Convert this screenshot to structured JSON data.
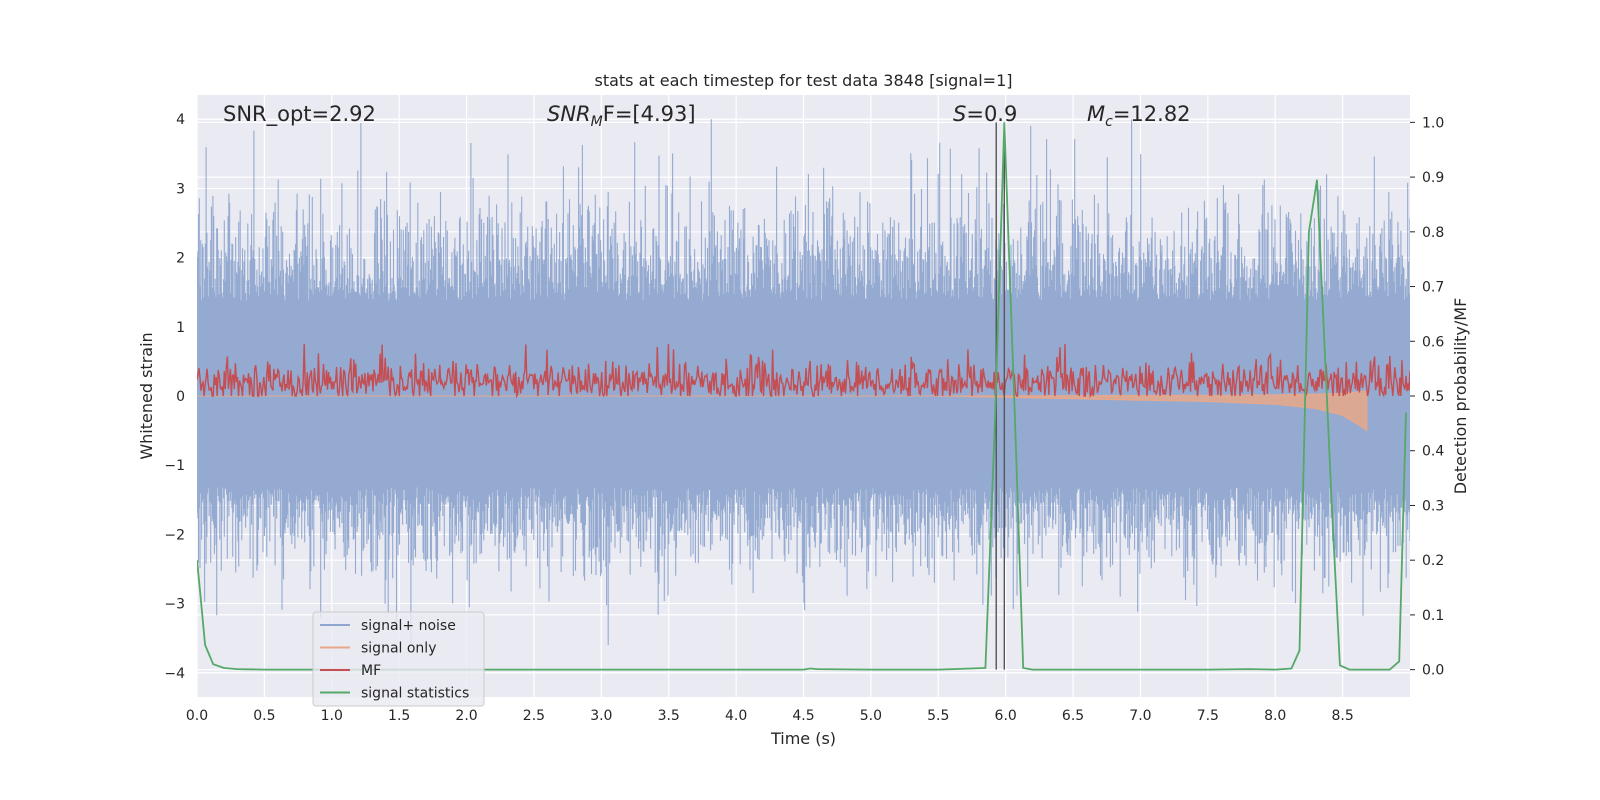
{
  "chart_data": {
    "type": "line",
    "title": "stats at each timestep for test data 3848 [signal=1]",
    "xlabel": "Time (s)",
    "ylabel_left": "Whitened strain",
    "ylabel_right": "Detection probability/MF",
    "xlim": [
      0.0,
      9.0
    ],
    "ylim_left": [
      -4.35,
      4.35
    ],
    "ylim_right": [
      -0.05,
      1.05
    ],
    "x_ticks": [
      "0.0",
      "0.5",
      "1.0",
      "1.5",
      "2.0",
      "2.5",
      "3.0",
      "3.5",
      "4.0",
      "4.5",
      "5.0",
      "5.5",
      "6.0",
      "6.5",
      "7.0",
      "7.5",
      "8.0",
      "8.5"
    ],
    "y_ticks_left": [
      "4",
      "3",
      "2",
      "1",
      "0",
      "−1",
      "−2",
      "−3",
      "−4"
    ],
    "y_ticks_right": [
      "1.0",
      "0.9",
      "0.8",
      "0.7",
      "0.6",
      "0.5",
      "0.4",
      "0.3",
      "0.2",
      "0.1",
      "0.0"
    ],
    "grid": true,
    "legend_position": "lower-left",
    "annotations": {
      "snr_opt": "SNR_opt=2.92",
      "snr_mf_main": "SNR",
      "snr_mf_sub": "M",
      "snr_mf_tail": "F=[4.93]",
      "s_var": "S",
      "s_val": "=0.9",
      "mc_main": "M",
      "mc_sub": "c",
      "mc_val": "=12.82"
    },
    "vertical_lines_x": [
      5.93,
      5.99
    ],
    "series": [
      {
        "name": "signal+ noise",
        "axis": "left",
        "color": "#8fa6cf",
        "description_values": "dense whitened strain noise, roughly within [-3.6, 4.0] around 0",
        "envelope": {
          "typical_max": 2.5,
          "typical_min": -2.2,
          "peak_max": 4.0,
          "peak_min": -3.6
        }
      },
      {
        "name": "signal only",
        "axis": "left",
        "color": "#e8a88a",
        "x": [
          0.0,
          5.5,
          6.0,
          6.5,
          7.0,
          7.5,
          8.0,
          8.3,
          8.5,
          8.62,
          8.68
        ],
        "y": [
          0.0,
          0.0,
          -0.02,
          -0.04,
          -0.06,
          -0.08,
          -0.12,
          -0.18,
          -0.28,
          -0.42,
          -0.5
        ]
      },
      {
        "name": "MF",
        "axis": "right",
        "color": "#c44e52",
        "description_values": "matched-filter output fluctuating mainly between 0.50 and 0.58",
        "range": [
          0.5,
          0.6
        ]
      },
      {
        "name": "signal statistics",
        "axis": "right",
        "color": "#55a868",
        "x": [
          0.0,
          0.02,
          0.06,
          0.12,
          0.2,
          0.3,
          0.5,
          1.0,
          2.0,
          3.0,
          4.0,
          4.5,
          4.55,
          4.6,
          5.0,
          5.5,
          5.85,
          5.92,
          5.99,
          6.07,
          6.13,
          6.2,
          6.5,
          7.0,
          7.5,
          7.8,
          8.0,
          8.12,
          8.18,
          8.25,
          8.31,
          8.42,
          8.48,
          8.55,
          8.7,
          8.85,
          8.92,
          8.97
        ],
        "y": [
          0.2,
          0.15,
          0.045,
          0.01,
          0.003,
          0.001,
          0.0,
          0.0,
          0.0,
          0.0,
          0.0,
          0.0,
          0.002,
          0.001,
          0.0,
          0.0,
          0.003,
          0.45,
          1.0,
          0.45,
          0.003,
          0.0,
          0.0,
          0.0,
          0.0,
          0.001,
          0.0,
          0.002,
          0.035,
          0.8,
          0.895,
          0.3,
          0.008,
          0.0,
          0.0,
          0.0,
          0.015,
          0.47
        ]
      }
    ]
  }
}
